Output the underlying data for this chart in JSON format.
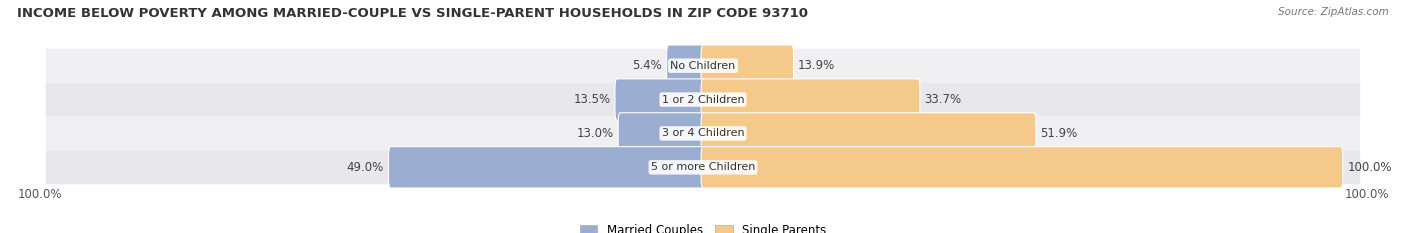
{
  "title": "INCOME BELOW POVERTY AMONG MARRIED-COUPLE VS SINGLE-PARENT HOUSEHOLDS IN ZIP CODE 93710",
  "source": "Source: ZipAtlas.com",
  "categories": [
    "No Children",
    "1 or 2 Children",
    "3 or 4 Children",
    "5 or more Children"
  ],
  "married_values": [
    5.4,
    13.5,
    13.0,
    49.0
  ],
  "single_values": [
    13.9,
    33.7,
    51.9,
    100.0
  ],
  "axis_max": 100.0,
  "married_color": "#9BADD0",
  "single_color": "#F5C98A",
  "legend_married": "Married Couples",
  "legend_single": "Single Parents",
  "title_fontsize": 9.5,
  "label_fontsize": 8.5,
  "source_fontsize": 7.5,
  "axis_label_left": "100.0%",
  "axis_label_right": "100.0%"
}
